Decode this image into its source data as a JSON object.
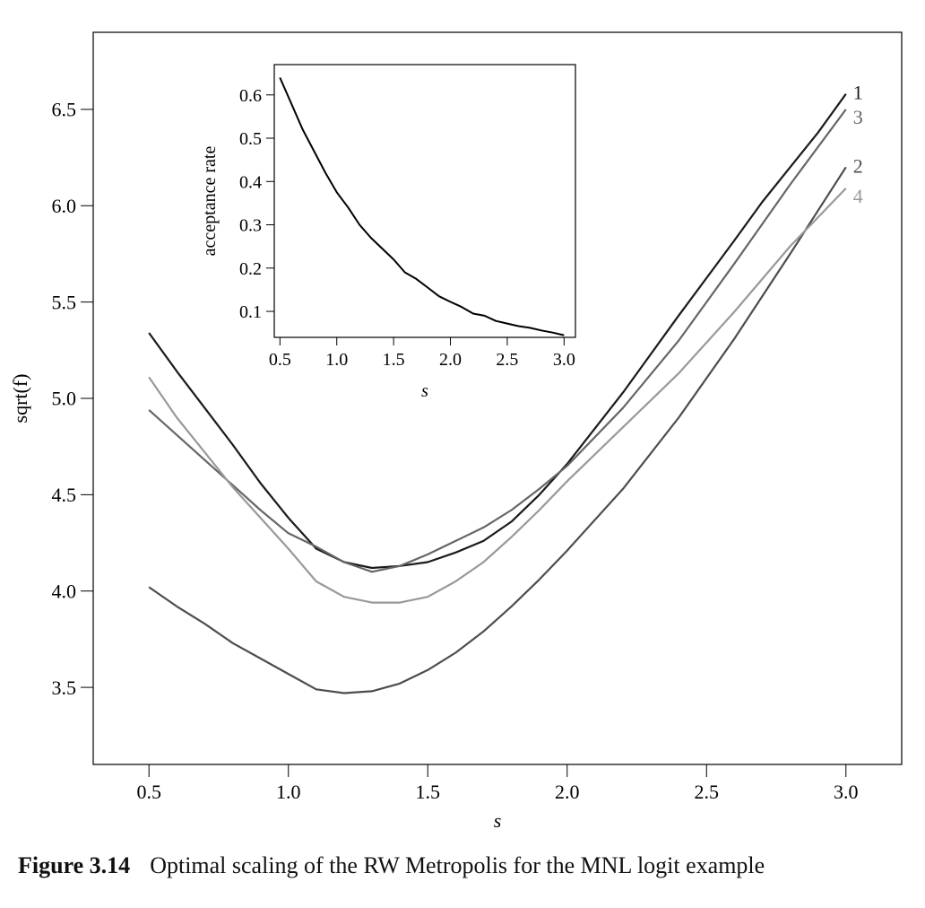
{
  "caption": {
    "label": "Figure 3.14",
    "text": "Optimal scaling of the RW Metropolis for the MNL logit example"
  },
  "chart_data": [
    {
      "type": "line",
      "xlabel": "s",
      "ylabel": "sqrt(f)",
      "xlim": [
        0.3,
        3.2
      ],
      "ylim": [
        3.1,
        6.9
      ],
      "xticks": [
        "0.5",
        "1.0",
        "1.5",
        "2.0",
        "2.5",
        "3.0"
      ],
      "yticks": [
        "3.5",
        "4.0",
        "4.5",
        "5.0",
        "5.5",
        "6.0",
        "6.5"
      ],
      "grid": false,
      "legend": "curve labels at right end",
      "series": [
        {
          "name": "1",
          "color": "#1a1a1a",
          "x": [
            0.5,
            0.6,
            0.7,
            0.8,
            0.9,
            1.0,
            1.1,
            1.2,
            1.3,
            1.4,
            1.5,
            1.6,
            1.7,
            1.8,
            1.9,
            2.0,
            2.2,
            2.4,
            2.6,
            2.7,
            2.8,
            2.9,
            3.0
          ],
          "y": [
            5.34,
            5.14,
            4.95,
            4.76,
            4.56,
            4.38,
            4.22,
            4.15,
            4.12,
            4.13,
            4.15,
            4.2,
            4.26,
            4.36,
            4.5,
            4.66,
            5.03,
            5.43,
            5.82,
            6.02,
            6.2,
            6.38,
            6.58
          ]
        },
        {
          "name": "2",
          "color": "#4d4d4d",
          "x": [
            0.5,
            0.6,
            0.7,
            0.8,
            0.9,
            1.0,
            1.1,
            1.2,
            1.3,
            1.4,
            1.5,
            1.6,
            1.7,
            1.8,
            1.9,
            2.0,
            2.2,
            2.4,
            2.6,
            2.8,
            3.0
          ],
          "y": [
            4.02,
            3.92,
            3.83,
            3.73,
            3.65,
            3.57,
            3.49,
            3.47,
            3.48,
            3.52,
            3.59,
            3.68,
            3.79,
            3.92,
            4.06,
            4.21,
            4.53,
            4.9,
            5.31,
            5.75,
            6.2
          ]
        },
        {
          "name": "3",
          "color": "#666666",
          "x": [
            0.5,
            0.6,
            0.7,
            0.8,
            0.9,
            1.0,
            1.1,
            1.2,
            1.3,
            1.4,
            1.5,
            1.6,
            1.7,
            1.8,
            1.9,
            2.0,
            2.2,
            2.4,
            2.6,
            2.8,
            3.0
          ],
          "y": [
            4.94,
            4.81,
            4.68,
            4.55,
            4.42,
            4.3,
            4.23,
            4.15,
            4.1,
            4.13,
            4.19,
            4.26,
            4.33,
            4.42,
            4.53,
            4.65,
            4.95,
            5.3,
            5.7,
            6.11,
            6.5
          ]
        },
        {
          "name": "4",
          "color": "#999999",
          "x": [
            0.5,
            0.6,
            0.7,
            0.8,
            0.9,
            1.0,
            1.1,
            1.2,
            1.3,
            1.4,
            1.5,
            1.6,
            1.7,
            1.8,
            1.9,
            2.0,
            2.2,
            2.4,
            2.6,
            2.8,
            3.0
          ],
          "y": [
            5.11,
            4.9,
            4.72,
            4.54,
            4.38,
            4.22,
            4.05,
            3.97,
            3.94,
            3.94,
            3.97,
            4.05,
            4.15,
            4.28,
            4.42,
            4.57,
            4.85,
            5.13,
            5.45,
            5.79,
            6.09
          ]
        }
      ]
    },
    {
      "type": "line",
      "xlabel": "s",
      "ylabel": "acceptance rate",
      "xlim": [
        0.45,
        3.1
      ],
      "ylim": [
        0.04,
        0.67
      ],
      "xticks": [
        "0.5",
        "1.0",
        "1.5",
        "2.0",
        "2.5",
        "3.0"
      ],
      "yticks": [
        "0.1",
        "0.2",
        "0.3",
        "0.4",
        "0.5",
        "0.6"
      ],
      "grid": false,
      "series": [
        {
          "color": "#000000",
          "x": [
            0.5,
            0.6,
            0.7,
            0.8,
            0.9,
            1.0,
            1.1,
            1.2,
            1.3,
            1.4,
            1.5,
            1.6,
            1.7,
            1.8,
            1.9,
            2.0,
            2.1,
            2.2,
            2.3,
            2.4,
            2.5,
            2.6,
            2.7,
            2.8,
            2.9,
            3.0
          ],
          "y": [
            0.64,
            0.58,
            0.52,
            0.47,
            0.42,
            0.375,
            0.34,
            0.3,
            0.27,
            0.245,
            0.22,
            0.19,
            0.175,
            0.155,
            0.135,
            0.122,
            0.11,
            0.095,
            0.09,
            0.078,
            0.072,
            0.066,
            0.062,
            0.056,
            0.051,
            0.045
          ]
        }
      ]
    }
  ]
}
